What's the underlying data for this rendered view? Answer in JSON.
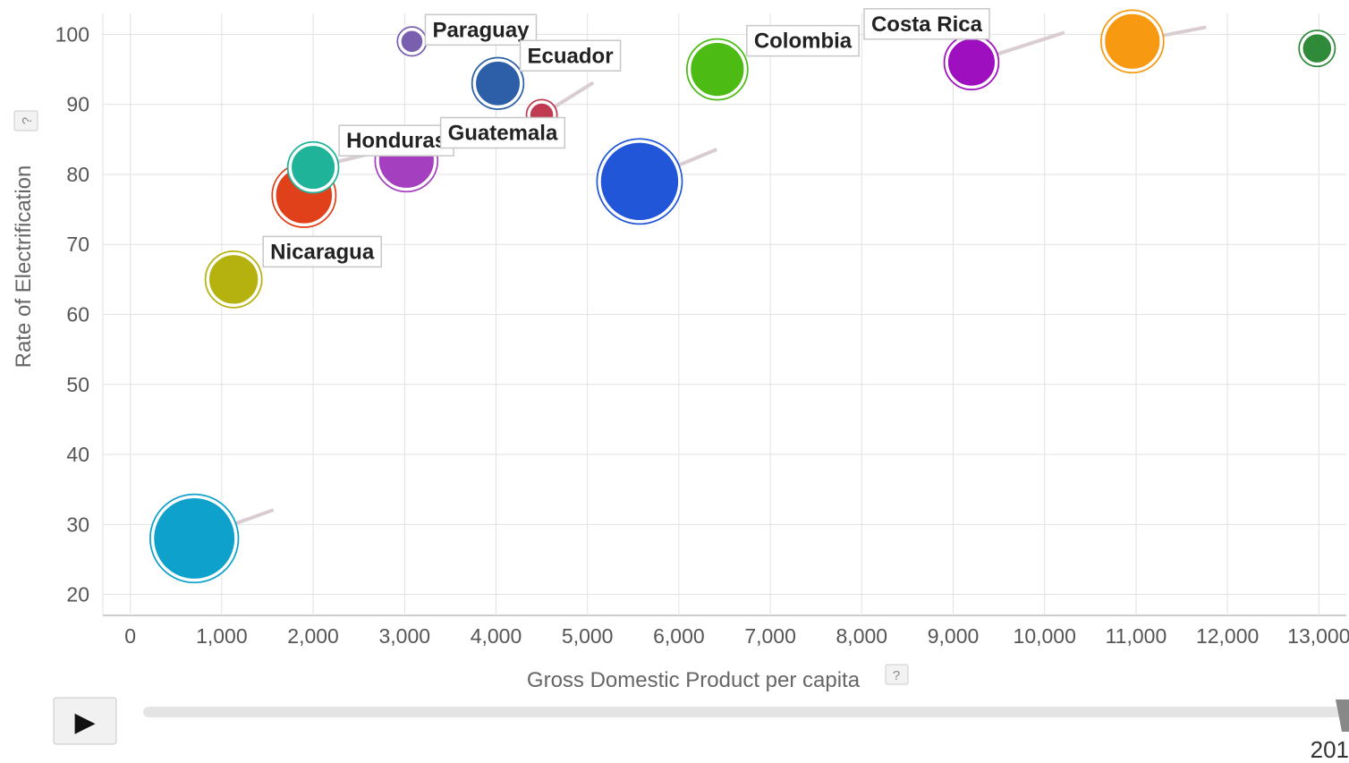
{
  "chart_data": {
    "type": "scatter",
    "subtype": "bubble",
    "xlabel": "Gross Domestic Product per capita",
    "ylabel": "Rate of Electrification",
    "xlim": [
      -300,
      13300
    ],
    "ylim": [
      17,
      103
    ],
    "x_ticks": [
      0,
      1000,
      2000,
      3000,
      4000,
      5000,
      6000,
      7000,
      8000,
      9000,
      10000,
      11000,
      12000,
      13000
    ],
    "x_tick_labels": [
      "0",
      "1,000",
      "2,000",
      "3,000",
      "4,000",
      "5,000",
      "6,000",
      "7,000",
      "8,000",
      "9,000",
      "10,000",
      "11,000",
      "12,000",
      "13,000"
    ],
    "y_ticks": [
      20,
      30,
      40,
      50,
      60,
      70,
      80,
      90,
      100
    ],
    "y_tick_labels": [
      "20",
      "30",
      "40",
      "50",
      "60",
      "70",
      "80",
      "90",
      "100"
    ],
    "grid": true,
    "points": [
      {
        "label": "",
        "x": 700,
        "y": 28,
        "size": 10,
        "color": "#0ea1cc",
        "trail": [
          1550,
          32
        ]
      },
      {
        "label": "Nicaragua",
        "x": 1130,
        "y": 65,
        "size": 3.4,
        "color": "#b5b10e"
      },
      {
        "label": "",
        "x": 1900,
        "y": 77,
        "size": 4.6,
        "color": "#e0401a"
      },
      {
        "label": "Honduras",
        "x": 2000,
        "y": 81,
        "size": 2.6,
        "color": "#1fb39a",
        "trail": [
          2800,
          83.5
        ]
      },
      {
        "label": "",
        "x": 3020,
        "y": 82,
        "size": 4.4,
        "color": "#a43fbf"
      },
      {
        "label": "Paraguay",
        "x": 3080,
        "y": 99,
        "size": 0.5,
        "color": "#7a5fb0"
      },
      {
        "label": "Ecuador",
        "x": 4020,
        "y": 93,
        "size": 2.7,
        "color": "#2c5fa8"
      },
      {
        "label": "Guatemala",
        "x": 4500,
        "y": 88.5,
        "size": 0.6,
        "color": "#c03a52",
        "trail": [
          5050,
          93
        ]
      },
      {
        "label": "",
        "x": 5570,
        "y": 79,
        "size": 9.2,
        "color": "#2156d8",
        "trail": [
          6400,
          83.5
        ]
      },
      {
        "label": "Colombia",
        "x": 6420,
        "y": 95,
        "size": 4.1,
        "color": "#4cbb14"
      },
      {
        "label": "Costa Rica",
        "x": 9200,
        "y": 96,
        "size": 3.1,
        "color": "#9e0fbf",
        "trail": [
          10200,
          100.2
        ]
      },
      {
        "label": "",
        "x": 10960,
        "y": 99,
        "size": 4.4,
        "color": "#f79a12",
        "trail": [
          11750,
          101
        ]
      },
      {
        "label": "",
        "x": 12980,
        "y": 98,
        "size": 1,
        "color": "#2f8a3a"
      }
    ]
  },
  "controls": {
    "play_label": "▶",
    "year_label": "201",
    "progress": 1.0
  },
  "help": {
    "y_help": "?",
    "x_help": "?"
  }
}
